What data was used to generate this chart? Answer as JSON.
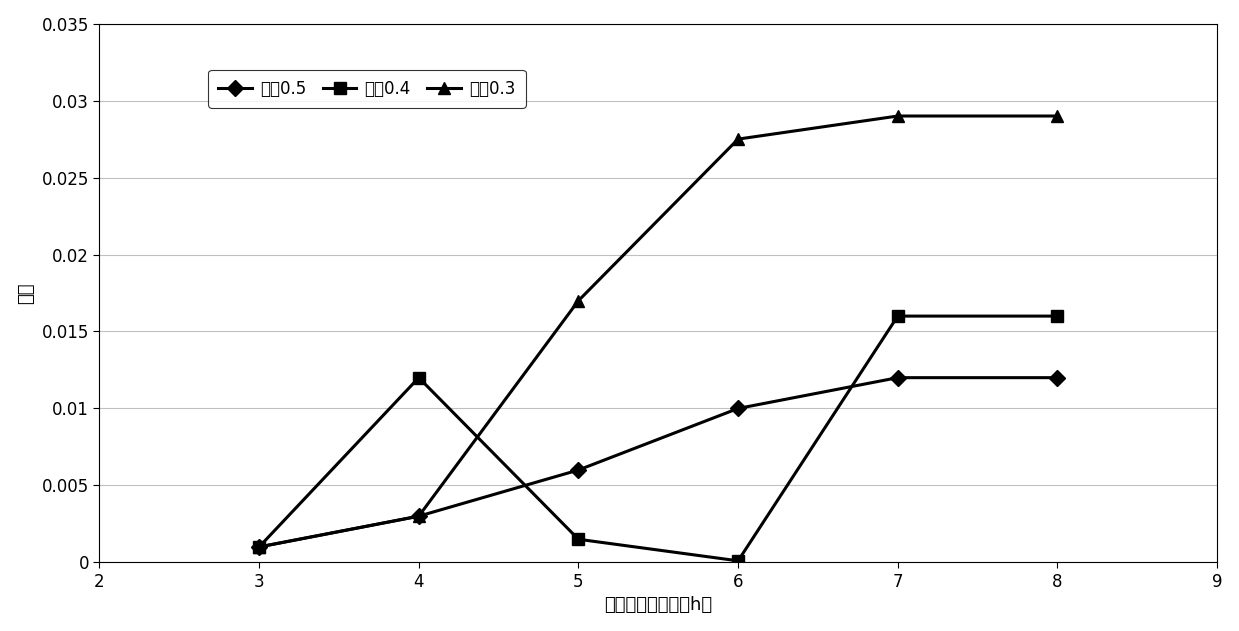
{
  "x": [
    3,
    4,
    5,
    6,
    7,
    8
  ],
  "series": [
    {
      "label": "层卓0.5",
      "y": [
        0.001,
        0.003,
        0.006,
        0.01,
        0.012,
        0.012
      ],
      "marker": "D",
      "color": "#000000"
    },
    {
      "label": "层卓0.4",
      "y": [
        0.001,
        0.012,
        0.0015,
        0.0001,
        0.016,
        0.016
      ],
      "marker": "s",
      "color": "#000000"
    },
    {
      "label": "层卓0.3",
      "y": [
        0.001,
        0.003,
        0.017,
        0.0275,
        0.029,
        0.029
      ],
      "marker": "^",
      "color": "#000000"
    }
  ],
  "xlabel": "铺筑层间歇时间（h）",
  "ylabel": "误差",
  "xlim": [
    2,
    9
  ],
  "ylim": [
    0,
    0.035
  ],
  "ytick_values": [
    0,
    0.005,
    0.01,
    0.015,
    0.02,
    0.025,
    0.03,
    0.035
  ],
  "ytick_labels": [
    "0",
    "0.005",
    "0.01",
    "0.015",
    "0.02",
    "0.025",
    "0.03",
    "0.035"
  ],
  "xticks": [
    2,
    3,
    4,
    5,
    6,
    7,
    8,
    9
  ],
  "background_color": "#ffffff",
  "grid_color": "#c0c0c0",
  "linewidth": 2.2,
  "markersize": 8
}
